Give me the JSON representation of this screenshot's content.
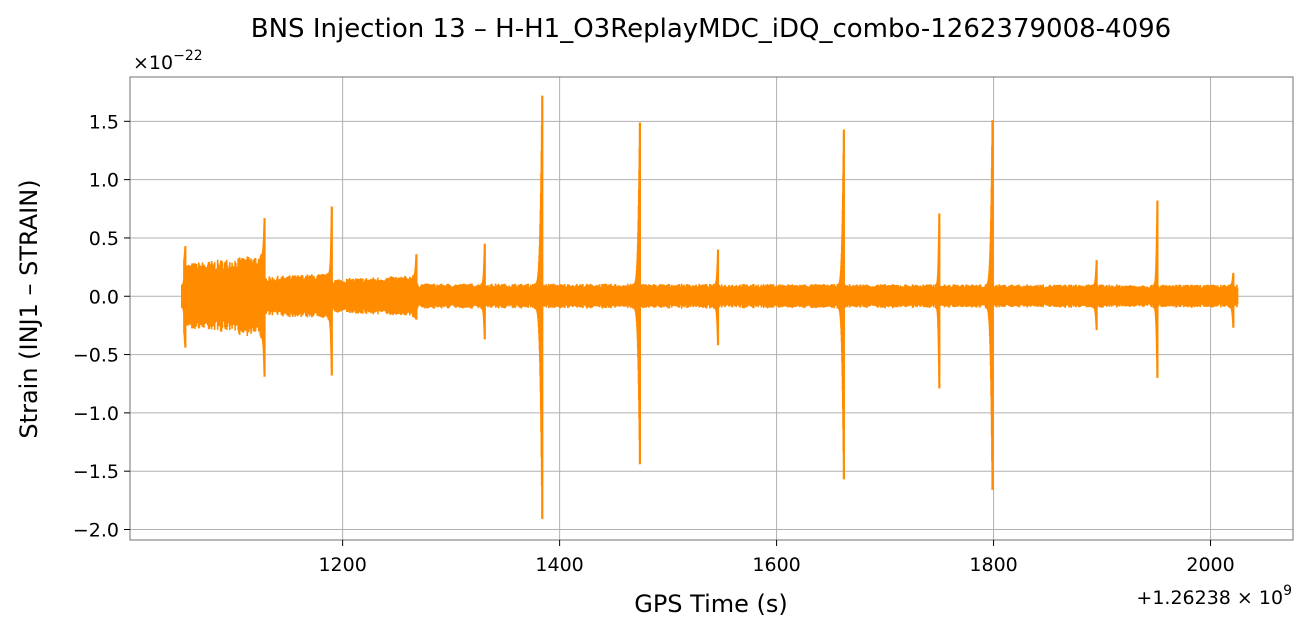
{
  "chart_data": {
    "type": "line",
    "title": "BNS Injection 13 – H-H1_O3ReplayMDC_iDQ_combo-1262379008-4096",
    "xlabel": "GPS Time (s)",
    "ylabel": "Strain (INJ1 – STRAIN)",
    "x_offset_label": "+1.26238 × 10^9",
    "y_scale_label": "×10^−22",
    "xlim": [
      1004,
      2076
    ],
    "ylim": [
      -2.09,
      1.88
    ],
    "x_ticks": [
      1200,
      1400,
      1600,
      1800,
      2000
    ],
    "x_tick_labels": [
      "1200",
      "1400",
      "1600",
      "1800",
      "2000"
    ],
    "y_ticks": [
      1.5,
      1.0,
      0.5,
      0.0,
      -0.5,
      -1.0,
      -1.5,
      -2.0
    ],
    "y_tick_labels": [
      "1.5",
      "1.0",
      "0.5",
      "0.0",
      "−0.5",
      "−1.0",
      "−1.5",
      "−2.0"
    ],
    "grid": true,
    "line_color": "#ff8c00",
    "data_range_x": [
      1054,
      2025
    ],
    "segments": [
      {
        "x0": 1054,
        "x1": 1128,
        "amp_start": 0.28,
        "amp_end": 0.36
      },
      {
        "x0": 1128,
        "x1": 1190,
        "amp_start": 0.17,
        "amp_end": 0.2
      },
      {
        "x0": 1190,
        "x1": 1268,
        "amp_start": 0.15,
        "amp_end": 0.18
      },
      {
        "x0": 1268,
        "x1": 2025,
        "amp_start": 0.11,
        "amp_end": 0.1
      }
    ],
    "peaks": [
      {
        "x": 1055,
        "max": 0.43,
        "min": -0.44
      },
      {
        "x": 1128,
        "max": 0.67,
        "min": -0.69
      },
      {
        "x": 1190,
        "max": 0.77,
        "min": -0.68
      },
      {
        "x": 1268,
        "max": 0.36,
        "min": -0.2
      },
      {
        "x": 1331,
        "max": 0.45,
        "min": -0.37
      },
      {
        "x": 1384,
        "max": 1.72,
        "min": -1.91
      },
      {
        "x": 1474,
        "max": 1.49,
        "min": -1.44
      },
      {
        "x": 1546,
        "max": 0.4,
        "min": -0.42
      },
      {
        "x": 1662,
        "max": 1.43,
        "min": -1.57
      },
      {
        "x": 1750,
        "max": 0.71,
        "min": -0.79
      },
      {
        "x": 1799,
        "max": 1.51,
        "min": -1.66
      },
      {
        "x": 1895,
        "max": 0.31,
        "min": -0.29
      },
      {
        "x": 1951,
        "max": 0.82,
        "min": -0.7
      },
      {
        "x": 2021,
        "max": 0.2,
        "min": -0.27
      }
    ]
  }
}
